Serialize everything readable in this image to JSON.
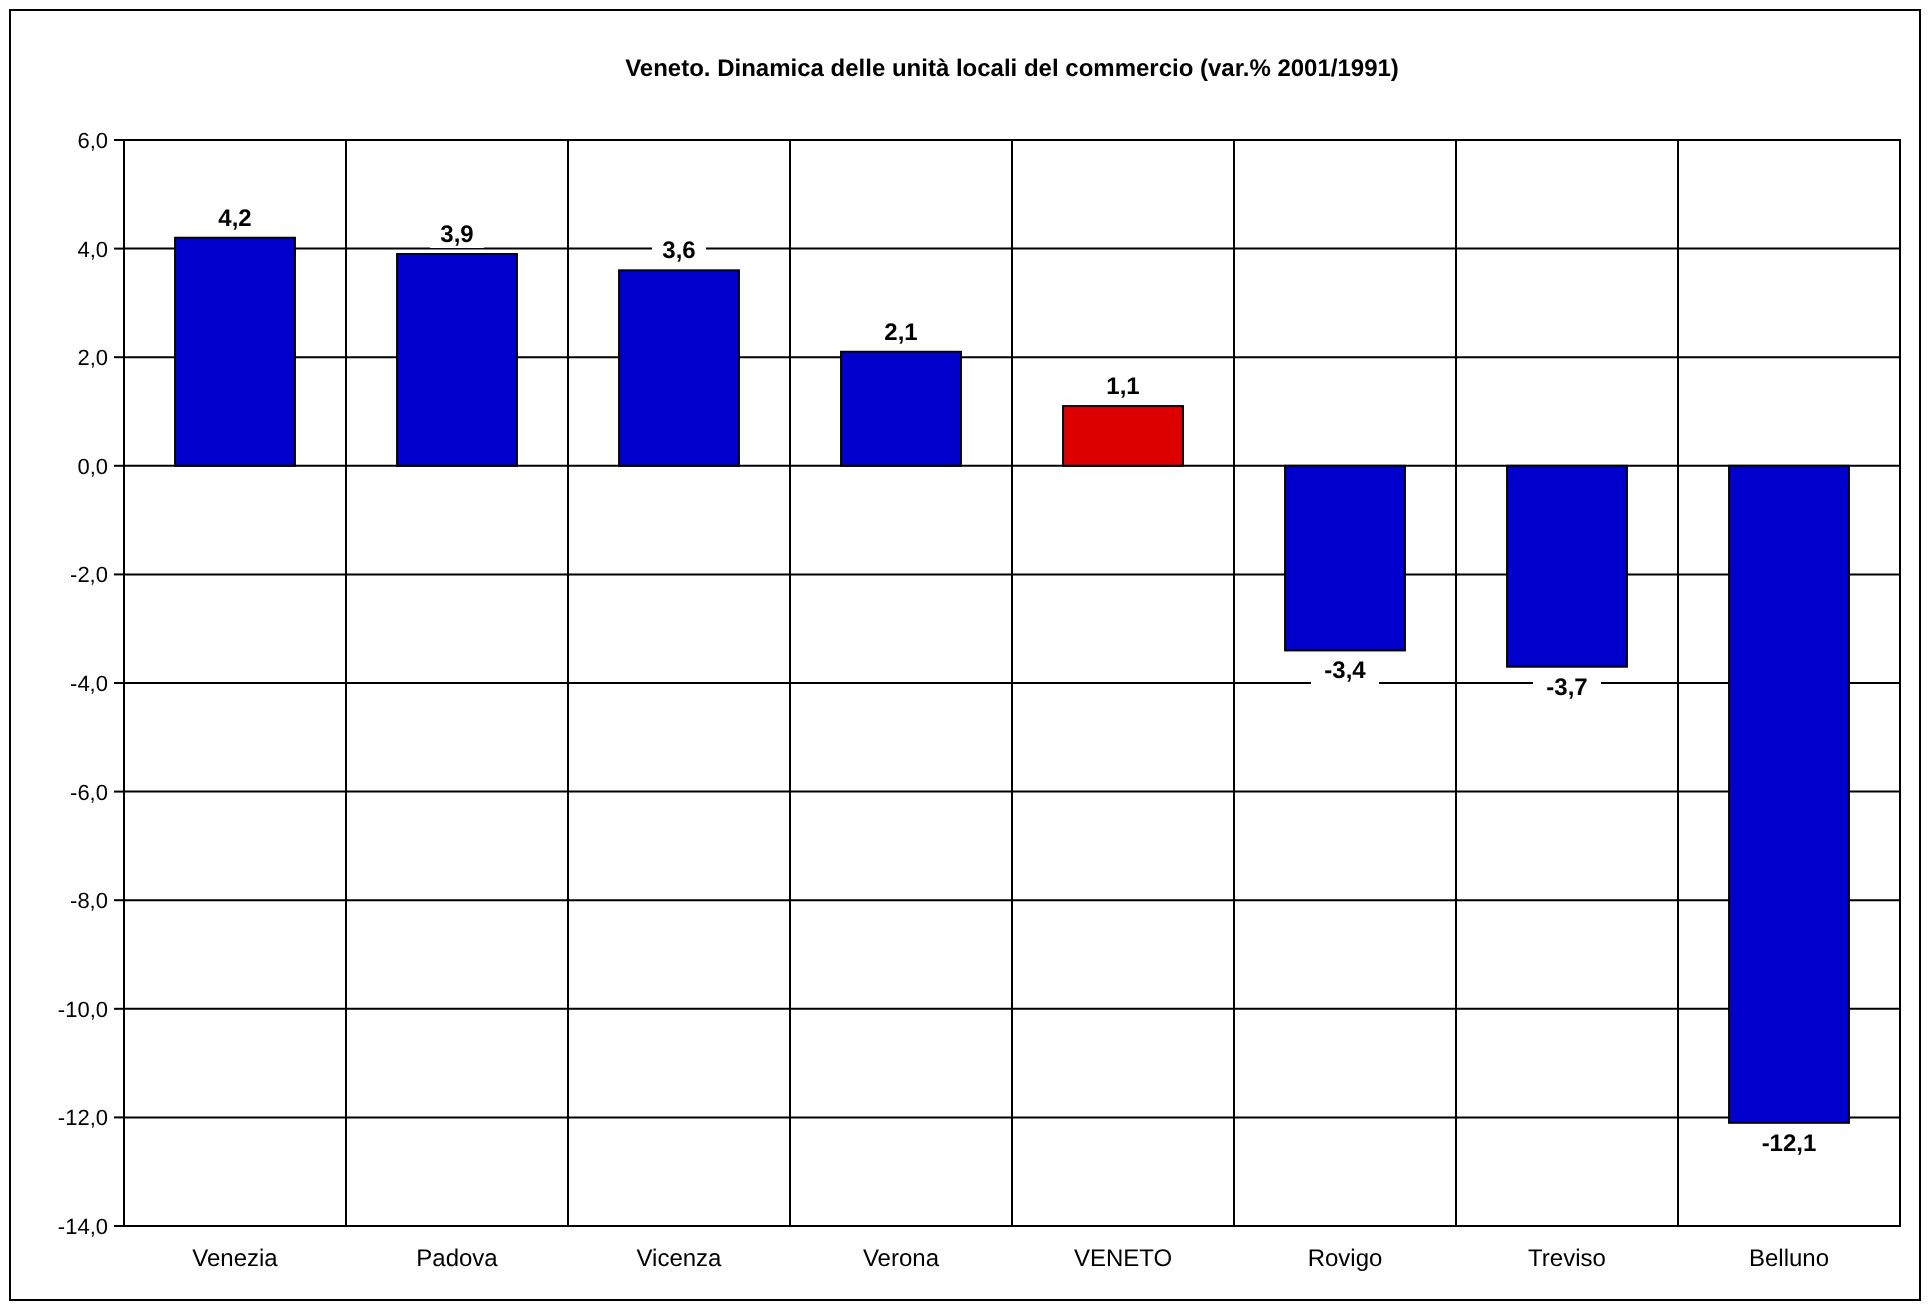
{
  "chart_data": {
    "type": "bar",
    "title": "Veneto. Dinamica delle unità locali del commercio (var.% 2001/1991)",
    "categories": [
      "Venezia",
      "Padova",
      "Vicenza",
      "Verona",
      "VENETO",
      "Rovigo",
      "Treviso",
      "Belluno"
    ],
    "values": [
      4.2,
      3.9,
      3.6,
      2.1,
      1.1,
      -3.4,
      -3.7,
      -12.1
    ],
    "colors": [
      "#0000cc",
      "#0000cc",
      "#0000cc",
      "#0000cc",
      "#dd0000",
      "#0000cc",
      "#0000cc",
      "#0000cc"
    ],
    "value_labels": [
      "4,2",
      "3,9",
      "3,6",
      "2,1",
      "1,1",
      "-3,4",
      "-3,7",
      "-12,1"
    ],
    "ylim": [
      -14,
      6
    ],
    "yticks": [
      {
        "value": 6,
        "label": "6,0"
      },
      {
        "value": 4,
        "label": "4,0"
      },
      {
        "value": 2,
        "label": "2,0"
      },
      {
        "value": 0,
        "label": "0,0"
      },
      {
        "value": -2,
        "label": "-2,0"
      },
      {
        "value": -4,
        "label": "-4,0"
      },
      {
        "value": -6,
        "label": "-6,0"
      },
      {
        "value": -8,
        "label": "-8,0"
      },
      {
        "value": -10,
        "label": "-10,0"
      },
      {
        "value": -12,
        "label": "-12,0"
      },
      {
        "value": -14,
        "label": "-14,0"
      }
    ],
    "grid": true
  }
}
